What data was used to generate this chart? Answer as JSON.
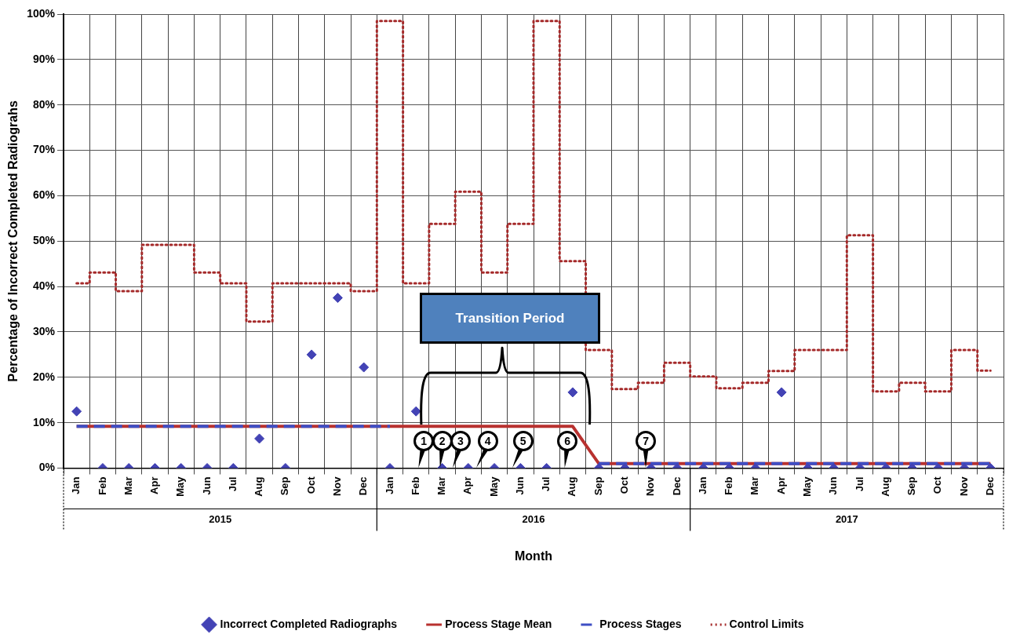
{
  "chart_data": {
    "type": "step",
    "ylabel": "Percentage of Incorrect Completed Radiograhs",
    "xlabel": "Month",
    "categories": [
      "Jan",
      "Feb",
      "Mar",
      "Apr",
      "May",
      "Jun",
      "Jul",
      "Aug",
      "Sep",
      "Oct",
      "Nov",
      "Dec",
      "Jan",
      "Feb",
      "Mar",
      "Apr",
      "May",
      "Jun",
      "Jul",
      "Aug",
      "Sep",
      "Oct",
      "Nov",
      "Dec",
      "Jan",
      "Feb",
      "Mar",
      "Apr",
      "May",
      "Jun",
      "Jul",
      "Aug",
      "Sep",
      "Oct",
      "Nov",
      "Dec"
    ],
    "series": [
      {
        "name": "Incorrect Completed Radiographs",
        "type": "scatter",
        "marker": "diamond",
        "color": "#4343b5",
        "values": [
          12.5,
          0,
          0,
          0,
          0,
          0,
          0,
          6.5,
          0,
          25,
          37.5,
          22.2,
          0,
          12.5,
          0,
          0,
          0,
          0,
          0,
          16.7,
          0,
          0,
          0,
          0,
          0,
          0,
          0,
          16.7,
          0,
          0,
          0,
          0,
          0,
          0,
          0,
          0
        ]
      },
      {
        "name": "Process Stage Mean",
        "type": "line",
        "line_style": "solid",
        "color": "#b8312f",
        "values": [
          9.2,
          9.2,
          9.2,
          9.2,
          9.2,
          9.2,
          9.2,
          9.2,
          9.2,
          9.2,
          9.2,
          9.2,
          9.2,
          9.2,
          9.2,
          9.2,
          9.2,
          9.2,
          9.2,
          9.2,
          1,
          1,
          1,
          1,
          1,
          1,
          1,
          1,
          1,
          1,
          1,
          1,
          1,
          1,
          1,
          1
        ]
      },
      {
        "name": "Process Stages",
        "type": "line",
        "line_style": "dashed",
        "color": "#3f4fc4",
        "values": [
          9.2,
          9.2,
          9.2,
          9.2,
          9.2,
          9.2,
          9.2,
          9.2,
          9.2,
          9.2,
          9.2,
          9.2,
          9.2,
          null,
          null,
          null,
          null,
          null,
          null,
          null,
          1,
          1,
          1,
          1,
          1,
          1,
          1,
          1,
          1,
          1,
          1,
          1,
          1,
          1,
          1,
          1
        ]
      },
      {
        "name": "Control Limits",
        "line_style": "dotted",
        "color": "#a52a2a",
        "values": [
          40.7,
          43.1,
          39,
          49.2,
          49.2,
          43.1,
          40.7,
          32.3,
          40.7,
          40.7,
          40.7,
          39,
          98.5,
          40.7,
          53.8,
          60.9,
          43.1,
          53.8,
          98.5,
          45.6,
          26,
          17.4,
          18.8,
          23.2,
          20.2,
          17.6,
          18.8,
          21.4,
          26,
          26,
          51.3,
          16.9,
          18.8,
          16.9,
          26,
          21.5
        ]
      }
    ],
    "ylim": [
      0,
      100
    ],
    "yticks": [
      {
        "value": 0,
        "label": "0%"
      },
      {
        "value": 10,
        "label": "10%"
      },
      {
        "value": 20,
        "label": "20%"
      },
      {
        "value": 30,
        "label": "30%"
      },
      {
        "value": 40,
        "label": "40%"
      },
      {
        "value": 50,
        "label": "50%"
      },
      {
        "value": 60,
        "label": "60%"
      },
      {
        "value": 70,
        "label": "70%"
      },
      {
        "value": 80,
        "label": "80%"
      },
      {
        "value": 90,
        "label": "90%"
      },
      {
        "value": 100,
        "label": "100%"
      }
    ],
    "grid": true,
    "legend": "bottom",
    "annotations": [
      "Transition Period",
      "1",
      "2",
      "3",
      "4",
      "5",
      "6",
      "7",
      "2015",
      "2016",
      "2017"
    ]
  }
}
